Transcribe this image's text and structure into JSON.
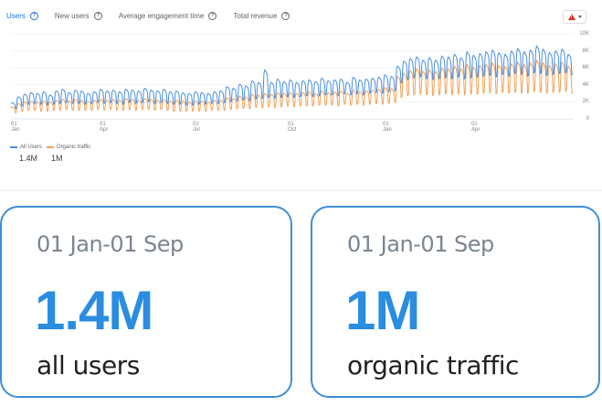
{
  "tabs": [
    {
      "label": "Users",
      "active": true
    },
    {
      "label": "New users",
      "active": false
    },
    {
      "label": "Average engagement time",
      "active": false
    },
    {
      "label": "Total revenue",
      "active": false
    }
  ],
  "warning_icon": "warning-triangle-icon",
  "colors": {
    "all_users": "#4a8fe0",
    "organic": "#f0a35a",
    "accent": "#1a73e8",
    "card_border": "#3d8ed6"
  },
  "chart_data": {
    "type": "line",
    "y_ticks": [
      "10K",
      "8K",
      "6K",
      "4K",
      "2K",
      "0"
    ],
    "ylim": [
      0,
      10000
    ],
    "x_ticks": [
      {
        "day": "01",
        "month": "Jan"
      },
      {
        "day": "01",
        "month": "Apr"
      },
      {
        "day": "01",
        "month": "Jul"
      },
      {
        "day": "01",
        "month": "Oct"
      },
      {
        "day": "01",
        "month": "Jan"
      },
      {
        "day": "01",
        "month": "Apr"
      }
    ],
    "series": [
      {
        "name": "All Users",
        "total": "1.4M",
        "key": "all_users",
        "weekly_peaks": [
          1900,
          2600,
          2900,
          3100,
          3000,
          3200,
          2800,
          3300,
          3500,
          3100,
          3400,
          3300,
          3000,
          3200,
          3500,
          3300,
          3400,
          3200,
          3500,
          3400,
          3300,
          3600,
          3400,
          3300,
          3500,
          3200,
          3300,
          3100,
          3000,
          3200,
          3100,
          3000,
          3200,
          3300,
          3800,
          3600,
          4100,
          3900,
          4500,
          4300,
          5800,
          4300,
          4700,
          4400,
          4600,
          4300,
          4500,
          4600,
          4400,
          4800,
          4500,
          4600,
          4700,
          4300,
          4900,
          4600,
          4700,
          4800,
          4900,
          5200,
          5000,
          6200,
          6800,
          7100,
          7300,
          6900,
          7200,
          6900,
          7400,
          7300,
          7600,
          7200,
          7900,
          7500,
          7700,
          7900,
          8100,
          7800,
          7600,
          8000,
          8300,
          7900,
          8100,
          8600,
          8200,
          7800,
          8000,
          8200,
          7600
        ],
        "weekly_troughs": [
          1200,
          1500,
          1700,
          1800,
          1700,
          1600,
          1700,
          1800,
          1900,
          1800,
          1800,
          1700,
          1800,
          1900,
          1800,
          1900,
          1800,
          1700,
          1900,
          1800,
          1900,
          2000,
          1800,
          1900,
          1800,
          1700,
          1700,
          1600,
          1600,
          1700,
          1700,
          1800,
          1800,
          1900,
          2000,
          2100,
          2200,
          2100,
          2300,
          2400,
          2500,
          2400,
          2500,
          2600,
          2500,
          2600,
          2700,
          2600,
          2700,
          2800,
          2800,
          2700,
          2900,
          2800,
          2900,
          2800,
          3000,
          3100,
          3000,
          3200,
          3300,
          4200,
          4600,
          4800,
          4900,
          4700,
          4600,
          4700,
          4800,
          4700,
          4900,
          4700,
          4800,
          4900,
          5000,
          5100,
          4900,
          5200,
          5000,
          5300,
          5200,
          5000,
          5400,
          5300,
          5100,
          5200,
          5300,
          5400,
          5200
        ]
      },
      {
        "name": "Organic traffic",
        "total": "1M",
        "key": "organic",
        "weekly_peaks": [
          1400,
          1800,
          2000,
          2100,
          2000,
          2100,
          2000,
          2200,
          2300,
          2100,
          2300,
          2200,
          2100,
          2200,
          2300,
          2200,
          2300,
          2200,
          2400,
          2300,
          2200,
          2400,
          2300,
          2200,
          2300,
          2100,
          2200,
          2100,
          2000,
          2100,
          2100,
          2000,
          2200,
          2200,
          2500,
          2400,
          2700,
          2600,
          2900,
          2800,
          3000,
          2900,
          3100,
          3000,
          3100,
          3000,
          3100,
          3200,
          3000,
          3300,
          3100,
          3200,
          3300,
          3000,
          3400,
          3200,
          3300,
          3400,
          3500,
          3700,
          3600,
          5000,
          5400,
          5700,
          5900,
          5600,
          5800,
          5600,
          6000,
          5900,
          6200,
          5900,
          6400,
          6100,
          6300,
          6400,
          6600,
          6300,
          6200,
          6500,
          6700,
          6400,
          6600,
          6900,
          6600,
          6300,
          6500,
          6700,
          6200
        ],
        "weekly_troughs": [
          700,
          900,
          1000,
          1000,
          900,
          900,
          1000,
          1000,
          1100,
          1000,
          1000,
          1000,
          1000,
          1100,
          1000,
          1100,
          1000,
          1000,
          1100,
          1000,
          1100,
          1100,
          1000,
          1100,
          1000,
          900,
          900,
          900,
          900,
          900,
          900,
          1000,
          1000,
          1000,
          1100,
          1200,
          1200,
          1200,
          1300,
          1300,
          1400,
          1300,
          1400,
          1500,
          1400,
          1500,
          1500,
          1500,
          1600,
          1600,
          1600,
          1500,
          1700,
          1600,
          1700,
          1600,
          1700,
          1800,
          1700,
          1800,
          1900,
          2500,
          2700,
          2800,
          2900,
          2800,
          2700,
          2800,
          2900,
          2800,
          2900,
          2800,
          2900,
          2900,
          3000,
          3000,
          2900,
          3100,
          3000,
          3100,
          3000,
          3000,
          3200,
          3100,
          3000,
          3100,
          3100,
          3200,
          3000
        ]
      }
    ]
  },
  "cards": [
    {
      "range": "01 Jan-01 Sep",
      "metric": "1.4M",
      "label": "all users"
    },
    {
      "range": "01 Jan-01 Sep",
      "metric": "1M",
      "label": "organic traffic"
    }
  ]
}
